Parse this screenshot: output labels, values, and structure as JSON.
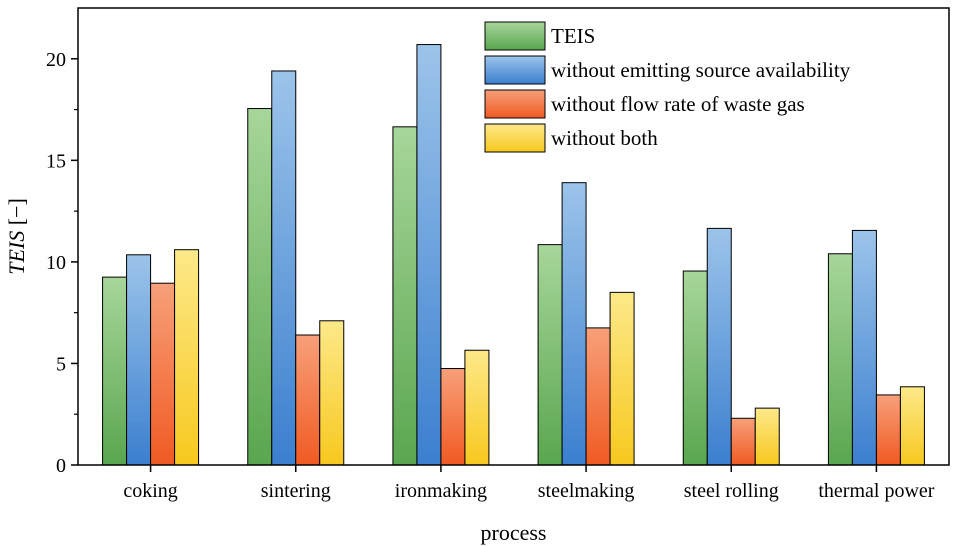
{
  "chart_data": {
    "type": "bar",
    "categories": [
      "coking",
      "sintering",
      "ironmaking",
      "steelmaking",
      "steel rolling",
      "thermal power"
    ],
    "series": [
      {
        "name": "TEIS",
        "color_top": "#a7d69a",
        "color_bottom": "#5aa64f",
        "values": [
          9.25,
          17.55,
          16.65,
          10.85,
          9.55,
          10.4
        ]
      },
      {
        "name": "without emitting source availability",
        "color_top": "#9cc4ea",
        "color_bottom": "#3b7fcf",
        "values": [
          10.35,
          19.4,
          20.7,
          13.9,
          11.65,
          11.55
        ]
      },
      {
        "name": "without flow rate of waste gas",
        "color_top": "#f7a07a",
        "color_bottom": "#f05a22",
        "values": [
          8.95,
          6.4,
          4.75,
          6.75,
          2.3,
          3.45
        ]
      },
      {
        "name": "without both",
        "color_top": "#fde98a",
        "color_bottom": "#f7c81e",
        "values": [
          10.6,
          7.1,
          5.65,
          8.5,
          2.8,
          3.85
        ]
      }
    ],
    "xlabel": "process",
    "ylabel_italic": "TEIS",
    "ylabel_unit": " [−]",
    "ylim": [
      0,
      22.5
    ],
    "yticks": [
      0,
      5,
      10,
      15,
      20
    ],
    "grid": false,
    "legend_placement": "top-right"
  }
}
